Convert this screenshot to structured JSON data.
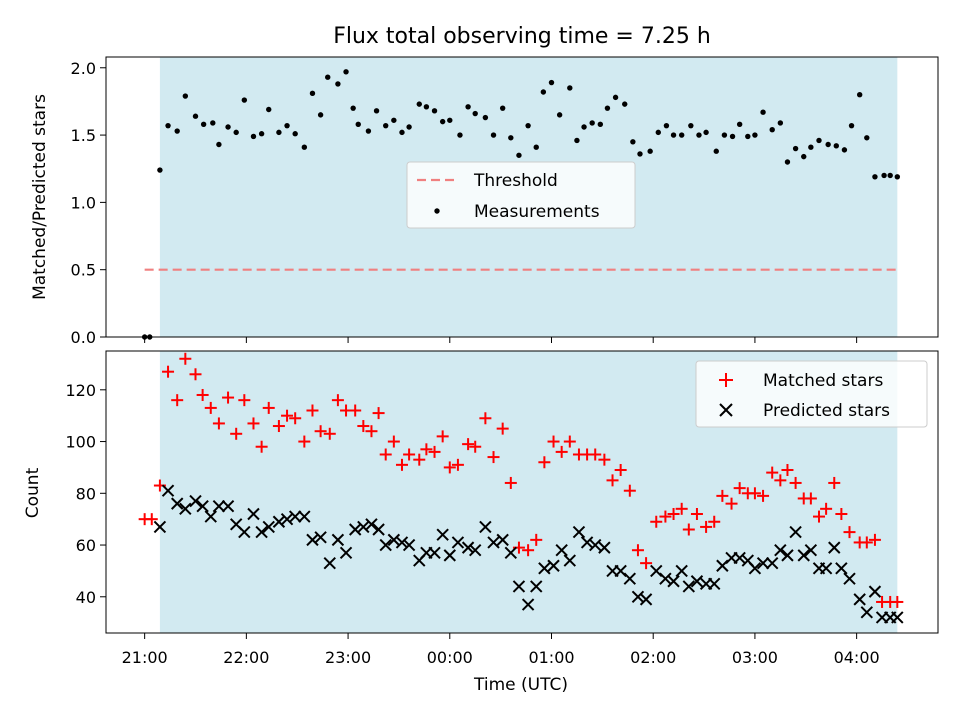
{
  "chart_data": [
    {
      "type": "scatter",
      "title": "Flux total observing time = 7.25 h",
      "xlabel": "",
      "ylabel": "Matched/Predicted stars",
      "xlim": [
        -0.38,
        7.8
      ],
      "ylim": [
        0,
        2.08
      ],
      "yticks": [
        0.0,
        0.5,
        1.0,
        1.5,
        2.0
      ],
      "ytick_labels": [
        "0.0",
        "0.5",
        "1.0",
        "1.5",
        "2.0"
      ],
      "observing_window": [
        0.15,
        7.4
      ],
      "legend_location": "center",
      "threshold": {
        "name": "Threshold",
        "value": 0.5,
        "x_range": [
          0,
          7.4
        ],
        "color": "#f08080"
      },
      "series": [
        {
          "name": "Measurements",
          "color": "#000000",
          "x": [
            0,
            0.05,
            0.15,
            0.23,
            0.32,
            0.4,
            0.5,
            0.58,
            0.67,
            0.73,
            0.82,
            0.9,
            0.98,
            1.07,
            1.15,
            1.22,
            1.32,
            1.4,
            1.48,
            1.57,
            1.65,
            1.73,
            1.8,
            1.9,
            1.98,
            2.05,
            2.1,
            2.2,
            2.28,
            2.37,
            2.45,
            2.53,
            2.6,
            2.7,
            2.77,
            2.85,
            2.93,
            3.0,
            3.1,
            3.18,
            3.25,
            3.35,
            3.43,
            3.52,
            3.6,
            3.68,
            3.77,
            3.85,
            3.92,
            4.0,
            4.08,
            4.18,
            4.25,
            4.32,
            4.4,
            4.48,
            4.55,
            4.63,
            4.72,
            4.8,
            4.87,
            4.97,
            5.05,
            5.13,
            5.2,
            5.28,
            5.37,
            5.45,
            5.52,
            5.62,
            5.7,
            5.78,
            5.85,
            5.93,
            6.0,
            6.08,
            6.17,
            6.25,
            6.32,
            6.4,
            6.48,
            6.55,
            6.63,
            6.72,
            6.8,
            6.88,
            6.95,
            7.03,
            7.1,
            7.18,
            7.27,
            7.33,
            7.4
          ],
          "y": [
            0,
            0,
            1.24,
            1.57,
            1.53,
            1.79,
            1.64,
            1.58,
            1.59,
            1.43,
            1.56,
            1.52,
            1.76,
            1.49,
            1.51,
            1.69,
            1.52,
            1.57,
            1.51,
            1.41,
            1.81,
            1.65,
            1.93,
            1.88,
            1.97,
            1.7,
            1.58,
            1.53,
            1.68,
            1.57,
            1.61,
            1.52,
            1.56,
            1.73,
            1.71,
            1.68,
            1.6,
            1.61,
            1.5,
            1.71,
            1.66,
            1.63,
            1.5,
            1.7,
            1.48,
            1.35,
            1.57,
            1.41,
            1.82,
            1.89,
            1.65,
            1.85,
            1.46,
            1.56,
            1.59,
            1.58,
            1.7,
            1.78,
            1.73,
            1.45,
            1.36,
            1.38,
            1.52,
            1.57,
            1.5,
            1.5,
            1.57,
            1.5,
            1.52,
            1.38,
            1.5,
            1.49,
            1.58,
            1.49,
            1.5,
            1.67,
            1.54,
            1.59,
            1.3,
            1.4,
            1.34,
            1.41,
            1.46,
            1.43,
            1.42,
            1.39,
            1.57,
            1.8,
            1.48,
            1.19,
            1.2,
            1.2,
            1.19
          ]
        }
      ]
    },
    {
      "type": "scatter",
      "title": "",
      "xlabel": "Time (UTC)",
      "ylabel": "Count",
      "xlim": [
        -0.38,
        7.8
      ],
      "ylim": [
        26,
        135
      ],
      "yticks": [
        40,
        60,
        80,
        100,
        120
      ],
      "ytick_labels": [
        "40",
        "60",
        "80",
        "100",
        "120"
      ],
      "xticks": [
        0,
        1,
        2,
        3,
        4,
        5,
        6,
        7
      ],
      "xtick_labels": [
        "21:00",
        "22:00",
        "23:00",
        "00:00",
        "01:00",
        "02:00",
        "03:00",
        "04:00"
      ],
      "observing_window": [
        0.15,
        7.4
      ],
      "legend_location": "top-right",
      "series": [
        {
          "name": "Matched stars",
          "marker": "plus",
          "color": "#ff0000",
          "x": [
            0,
            0.07,
            0.15,
            0.23,
            0.32,
            0.4,
            0.5,
            0.57,
            0.65,
            0.73,
            0.82,
            0.9,
            0.98,
            1.07,
            1.15,
            1.22,
            1.32,
            1.4,
            1.48,
            1.57,
            1.65,
            1.73,
            1.82,
            1.9,
            1.98,
            2.07,
            2.15,
            2.23,
            2.3,
            2.37,
            2.45,
            2.53,
            2.6,
            2.7,
            2.77,
            2.85,
            2.93,
            3.0,
            3.08,
            3.18,
            3.25,
            3.35,
            3.43,
            3.52,
            3.6,
            3.68,
            3.77,
            3.85,
            3.93,
            4.02,
            4.1,
            4.18,
            4.27,
            4.35,
            4.43,
            4.52,
            4.6,
            4.68,
            4.77,
            4.85,
            4.93,
            5.03,
            5.12,
            5.2,
            5.28,
            5.35,
            5.43,
            5.52,
            5.6,
            5.68,
            5.77,
            5.85,
            5.93,
            6.0,
            6.08,
            6.17,
            6.25,
            6.32,
            6.4,
            6.48,
            6.55,
            6.63,
            6.7,
            6.78,
            6.85,
            6.93,
            7.03,
            7.1,
            7.18,
            7.25,
            7.33,
            7.4
          ],
          "y": [
            70,
            70,
            83,
            127,
            116,
            132,
            126,
            118,
            113,
            107,
            117,
            103,
            116,
            107,
            98,
            113,
            106,
            110,
            109,
            100,
            112,
            104,
            103,
            116,
            112,
            112,
            106,
            104,
            111,
            95,
            100,
            91,
            95,
            93,
            97,
            96,
            102,
            90,
            91,
            99,
            98,
            109,
            94,
            105,
            84,
            59,
            58,
            62,
            92,
            100,
            96,
            100,
            95,
            95,
            95,
            93,
            85,
            89,
            81,
            58,
            53,
            69,
            71,
            72,
            74,
            66,
            72,
            67,
            69,
            79,
            76,
            82,
            80,
            80,
            79,
            88,
            85,
            89,
            84,
            78,
            78,
            71,
            74,
            84,
            72,
            65,
            61,
            61,
            62,
            38,
            38,
            38
          ]
        },
        {
          "name": "Predicted stars",
          "marker": "x",
          "color": "#000000",
          "x": [
            0.15,
            0.23,
            0.32,
            0.4,
            0.5,
            0.57,
            0.65,
            0.73,
            0.82,
            0.9,
            0.98,
            1.07,
            1.15,
            1.22,
            1.32,
            1.4,
            1.48,
            1.57,
            1.65,
            1.73,
            1.82,
            1.9,
            1.98,
            2.07,
            2.15,
            2.23,
            2.3,
            2.37,
            2.45,
            2.53,
            2.6,
            2.7,
            2.77,
            2.85,
            2.93,
            3.0,
            3.08,
            3.18,
            3.25,
            3.35,
            3.43,
            3.52,
            3.6,
            3.68,
            3.77,
            3.85,
            3.93,
            4.02,
            4.1,
            4.18,
            4.27,
            4.35,
            4.43,
            4.52,
            4.6,
            4.68,
            4.77,
            4.85,
            4.93,
            5.03,
            5.12,
            5.2,
            5.28,
            5.35,
            5.43,
            5.52,
            5.6,
            5.68,
            5.77,
            5.85,
            5.93,
            6.0,
            6.08,
            6.17,
            6.25,
            6.32,
            6.4,
            6.48,
            6.55,
            6.63,
            6.7,
            6.78,
            6.85,
            6.93,
            7.03,
            7.1,
            7.18,
            7.25,
            7.33,
            7.4
          ],
          "y": [
            67,
            81,
            76,
            74,
            77,
            75,
            71,
            75,
            75,
            68,
            65,
            72,
            65,
            67,
            69,
            70,
            71,
            71,
            62,
            63,
            53,
            62,
            57,
            66,
            67,
            68,
            66,
            60,
            62,
            61,
            60,
            54,
            57,
            57,
            64,
            56,
            61,
            59,
            58,
            67,
            61,
            62,
            57,
            44,
            37,
            44,
            51,
            52,
            58,
            54,
            65,
            61,
            60,
            59,
            50,
            50,
            47,
            40,
            39,
            50,
            47,
            46,
            50,
            44,
            46,
            45,
            45,
            52,
            55,
            55,
            54,
            51,
            53,
            53,
            58,
            56,
            65,
            56,
            58,
            51,
            51,
            59,
            51,
            47,
            39,
            34,
            42,
            32,
            32,
            32
          ]
        }
      ]
    }
  ]
}
